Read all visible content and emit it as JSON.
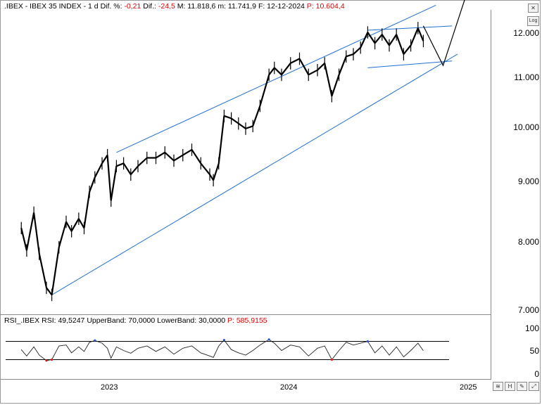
{
  "header": {
    "symbol": ".IBEX - IBEX 35 INDEX - 1 d",
    "chg_pct_label": "Dif. %:",
    "chg_pct": "-0,21",
    "chg_label": "Dif.:",
    "chg": "-24,5",
    "high": "M: 11.818,6",
    "low": "m: 11.741,9",
    "date": "F: 12-12-2024",
    "price_label": "P:",
    "price": "10.604,4"
  },
  "rsi_header": {
    "text": "RSI_.IBEX RSI: 49,5247  UpperBand: 70,0000  LowerBand: 30,0000",
    "p_label": "P:",
    "p_value": "585,9155"
  },
  "log_button": "Log",
  "colors": {
    "price": "#000000",
    "channel": "#1f6fd1",
    "rsi_high": "#2a55d6",
    "rsi_low": "#e02020",
    "band": "#000000"
  },
  "chart_data": [
    {
      "type": "line",
      "title": "IBEX 35 INDEX",
      "y_axis": {
        "scale": "log",
        "ticks": [
          "12.000",
          "11.000",
          "10.000",
          "9.000",
          "8.000",
          "7.000"
        ],
        "tick_values": [
          12000,
          11000,
          10000,
          9000,
          8000,
          7000
        ]
      },
      "x_axis": {
        "ticks": [
          "2023",
          "2024",
          "2025"
        ]
      },
      "series": [
        {
          "values": [
            [
              2022.55,
              8200
            ],
            [
              2022.58,
              7850
            ],
            [
              2022.62,
              8450
            ],
            [
              2022.65,
              7800
            ],
            [
              2022.69,
              7300
            ],
            [
              2022.72,
              7200
            ],
            [
              2022.76,
              7900
            ],
            [
              2022.8,
              8300
            ],
            [
              2022.83,
              8150
            ],
            [
              2022.87,
              8350
            ],
            [
              2022.9,
              8200
            ],
            [
              2022.93,
              8800
            ],
            [
              2022.96,
              9050
            ],
            [
              2023.0,
              9300
            ],
            [
              2023.03,
              9450
            ],
            [
              2023.05,
              8650
            ],
            [
              2023.08,
              9250
            ],
            [
              2023.12,
              9300
            ],
            [
              2023.16,
              9100
            ],
            [
              2023.2,
              9250
            ],
            [
              2023.25,
              9400
            ],
            [
              2023.3,
              9400
            ],
            [
              2023.35,
              9500
            ],
            [
              2023.4,
              9350
            ],
            [
              2023.45,
              9450
            ],
            [
              2023.5,
              9550
            ],
            [
              2023.55,
              9300
            ],
            [
              2023.6,
              9100
            ],
            [
              2023.62,
              9000
            ],
            [
              2023.65,
              9300
            ],
            [
              2023.68,
              10200
            ],
            [
              2023.72,
              10150
            ],
            [
              2023.76,
              10050
            ],
            [
              2023.8,
              9950
            ],
            [
              2023.84,
              10000
            ],
            [
              2023.88,
              10400
            ],
            [
              2023.93,
              11050
            ],
            [
              2023.96,
              11200
            ],
            [
              2024.0,
              11050
            ],
            [
              2024.05,
              11300
            ],
            [
              2024.1,
              11400
            ],
            [
              2024.15,
              11050
            ],
            [
              2024.2,
              11150
            ],
            [
              2024.24,
              11300
            ],
            [
              2024.28,
              10600
            ],
            [
              2024.32,
              11050
            ],
            [
              2024.36,
              11450
            ],
            [
              2024.4,
              11500
            ],
            [
              2024.44,
              11650
            ],
            [
              2024.48,
              12000
            ],
            [
              2024.52,
              11750
            ],
            [
              2024.56,
              11950
            ],
            [
              2024.6,
              11700
            ],
            [
              2024.64,
              11950
            ],
            [
              2024.68,
              11500
            ],
            [
              2024.72,
              11700
            ],
            [
              2024.76,
              12100
            ],
            [
              2024.79,
              11800
            ]
          ]
        }
      ],
      "annotations": {
        "channel_upper": [
          [
            2022.72,
            7200
          ],
          [
            2024.98,
            11500
          ]
        ],
        "channel_top": [
          [
            2023.08,
            9500
          ],
          [
            2024.86,
            12650
          ]
        ],
        "triangle_top": [
          [
            2024.48,
            12050
          ],
          [
            2024.95,
            12150
          ]
        ],
        "triangle_bottom": [
          [
            2024.48,
            11200
          ],
          [
            2024.95,
            11350
          ]
        ],
        "projection": [
          [
            2024.79,
            12150
          ],
          [
            2024.9,
            11250
          ],
          [
            2025.05,
            13200
          ]
        ]
      }
    },
    {
      "type": "line",
      "title": "RSI",
      "y_axis": {
        "ticks": [
          "100",
          "50",
          "0"
        ],
        "tick_values": [
          100,
          50,
          0
        ]
      },
      "bands": [
        70,
        30
      ],
      "series": [
        {
          "values": [
            [
              2022.55,
              52
            ],
            [
              2022.58,
              38
            ],
            [
              2022.62,
              58
            ],
            [
              2022.65,
              40
            ],
            [
              2022.69,
              28
            ],
            [
              2022.72,
              30
            ],
            [
              2022.76,
              60
            ],
            [
              2022.8,
              62
            ],
            [
              2022.83,
              45
            ],
            [
              2022.87,
              58
            ],
            [
              2022.9,
              48
            ],
            [
              2022.93,
              68
            ],
            [
              2022.96,
              72
            ],
            [
              2023.0,
              66
            ],
            [
              2023.03,
              55
            ],
            [
              2023.05,
              33
            ],
            [
              2023.08,
              58
            ],
            [
              2023.12,
              50
            ],
            [
              2023.16,
              44
            ],
            [
              2023.2,
              55
            ],
            [
              2023.25,
              60
            ],
            [
              2023.3,
              48
            ],
            [
              2023.35,
              58
            ],
            [
              2023.4,
              42
            ],
            [
              2023.45,
              55
            ],
            [
              2023.5,
              60
            ],
            [
              2023.55,
              45
            ],
            [
              2023.6,
              38
            ],
            [
              2023.62,
              35
            ],
            [
              2023.65,
              60
            ],
            [
              2023.68,
              73
            ],
            [
              2023.72,
              52
            ],
            [
              2023.76,
              45
            ],
            [
              2023.8,
              40
            ],
            [
              2023.84,
              50
            ],
            [
              2023.88,
              62
            ],
            [
              2023.93,
              74
            ],
            [
              2023.96,
              66
            ],
            [
              2024.0,
              50
            ],
            [
              2024.05,
              62
            ],
            [
              2024.1,
              58
            ],
            [
              2024.15,
              38
            ],
            [
              2024.2,
              55
            ],
            [
              2024.24,
              60
            ],
            [
              2024.28,
              30
            ],
            [
              2024.32,
              50
            ],
            [
              2024.36,
              68
            ],
            [
              2024.4,
              62
            ],
            [
              2024.44,
              66
            ],
            [
              2024.48,
              70
            ],
            [
              2024.52,
              45
            ],
            [
              2024.56,
              60
            ],
            [
              2024.6,
              40
            ],
            [
              2024.64,
              58
            ],
            [
              2024.68,
              36
            ],
            [
              2024.72,
              50
            ],
            [
              2024.76,
              66
            ],
            [
              2024.79,
              49.5
            ]
          ]
        }
      ]
    }
  ]
}
